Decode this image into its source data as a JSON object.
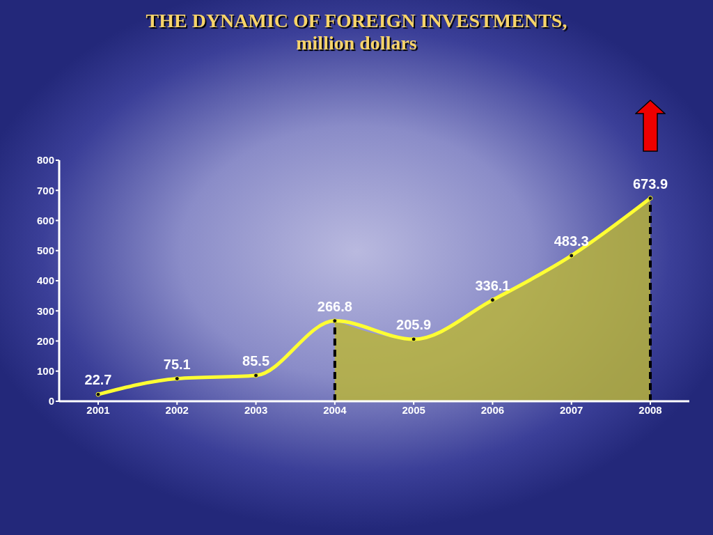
{
  "chart_data": {
    "type": "line",
    "title": "THE DYNAMIC OF FOREIGN INVESTMENTS,",
    "subtitle": "million dollars",
    "categories": [
      "2001",
      "2002",
      "2003",
      "2004",
      "2005",
      "2006",
      "2007",
      "2008"
    ],
    "series": [
      {
        "type": "area",
        "color": "#b8b43c",
        "values": [
          null,
          null,
          null,
          266.8,
          205.9,
          336.1,
          483.3,
          673.9
        ],
        "value_labels": [
          null,
          null,
          null,
          null,
          null,
          null,
          null,
          null
        ]
      },
      {
        "color": "#ffff33",
        "values": [
          22.7,
          75.1,
          85.5,
          266.8,
          205.9,
          336.1,
          483.3,
          673.9
        ],
        "marker": "circle"
      }
    ],
    "ylim": [
      0,
      800
    ],
    "yticks": [
      0,
      100,
      200,
      300,
      400,
      500,
      600,
      700,
      800
    ],
    "ref_lines": [
      {
        "axis": "x",
        "value": "2004",
        "line_style": "dashed",
        "color": "#000000"
      },
      {
        "axis": "x",
        "value": "2008",
        "line_style": "dashed",
        "color": "#000000"
      }
    ],
    "data_labels": true,
    "grid": false
  }
}
